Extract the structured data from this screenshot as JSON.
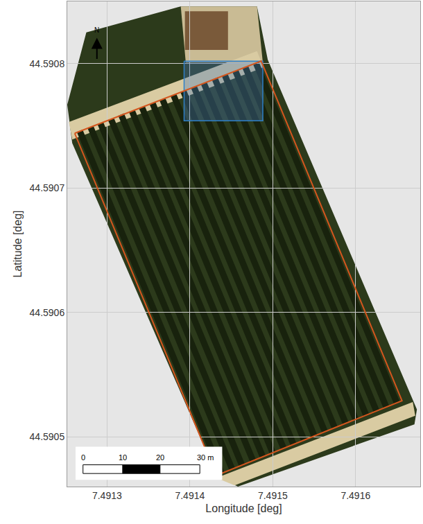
{
  "chart_data": {
    "type": "map",
    "x_label": "Longitude [deg]",
    "y_label": "Latitude [deg]",
    "xlim": [
      7.491252,
      7.491678
    ],
    "ylim": [
      44.59046,
      44.59085
    ],
    "xticks": [
      7.4913,
      7.4914,
      7.4915,
      7.4916
    ],
    "yticks": [
      44.5905,
      44.5906,
      44.5907,
      44.5908
    ],
    "grid": true,
    "north_label": "N",
    "features": [
      {
        "color": "#2c3a1b",
        "lon": [
          7.491252,
          7.491275,
          7.491389,
          7.491481,
          7.491494,
          7.491674,
          7.491671,
          7.491458,
          7.491433,
          7.491258
        ],
        "lat": [
          44.590767,
          44.590825,
          44.590846,
          44.590846,
          44.590803,
          44.590522,
          44.59051,
          44.59046,
          44.590468,
          44.590736
        ]
      },
      {
        "color": "#c9bb94",
        "lon": [
          7.491389,
          7.491481,
          7.491488,
          7.491395
        ],
        "lat": [
          44.590846,
          44.590846,
          44.590801,
          44.590801
        ]
      },
      {
        "color": "#7a5a3a",
        "lon": [
          7.491394,
          7.491446,
          7.491446,
          7.491394
        ],
        "lat": [
          44.590842,
          44.590842,
          44.590811,
          44.590811
        ]
      },
      {
        "color": "#d9cba2",
        "lon": [
          7.491254,
          7.491481,
          7.491489,
          7.491258
        ],
        "lat": [
          44.590753,
          44.59081,
          44.590797,
          44.590739
        ]
      },
      {
        "color": "#d9cba2",
        "lon": [
          7.491432,
          7.491669,
          7.491672,
          7.491454
        ],
        "lat": [
          44.590467,
          44.590528,
          44.590517,
          44.590461
        ]
      }
    ],
    "rows": {
      "color": "#18220d",
      "lon": [
        [
          7.491267,
          7.491438
        ],
        [
          7.49128,
          7.491451
        ],
        [
          7.491292,
          7.491463
        ],
        [
          7.491305,
          7.491476
        ],
        [
          7.491317,
          7.491488
        ],
        [
          7.49133,
          7.4915
        ],
        [
          7.491342,
          7.491513
        ],
        [
          7.491355,
          7.491525
        ],
        [
          7.491367,
          7.491538
        ],
        [
          7.49138,
          7.49155
        ],
        [
          7.491392,
          7.491563
        ],
        [
          7.491405,
          7.491575
        ],
        [
          7.491417,
          7.491588
        ],
        [
          7.49143,
          7.4916
        ],
        [
          7.491442,
          7.491613
        ],
        [
          7.491455,
          7.491625
        ],
        [
          7.491467,
          7.491637
        ],
        [
          7.49148,
          7.49165
        ]
      ],
      "lat": [
        [
          44.590746,
          44.590471
        ],
        [
          44.590749,
          44.590474
        ],
        [
          44.590752,
          44.590477
        ],
        [
          44.590755,
          44.590481
        ],
        [
          44.590759,
          44.590484
        ],
        [
          44.590762,
          44.590487
        ],
        [
          44.590765,
          44.590491
        ],
        [
          44.590768,
          44.590494
        ],
        [
          44.590771,
          44.590497
        ],
        [
          44.590775,
          44.590501
        ],
        [
          44.590778,
          44.590504
        ],
        [
          44.590781,
          44.590507
        ],
        [
          44.590784,
          44.590511
        ],
        [
          44.590788,
          44.590514
        ],
        [
          44.590791,
          44.590517
        ],
        [
          44.590794,
          44.590521
        ],
        [
          44.590797,
          44.590524
        ],
        [
          44.5908,
          44.590527
        ]
      ]
    },
    "boundary": {
      "color": "#d4561e",
      "lon": [
        7.491261,
        7.491486,
        7.491656,
        7.491432,
        7.491261
      ],
      "lat": [
        44.590744,
        44.590802,
        44.590529,
        44.590469,
        44.590744
      ]
    },
    "subplot": {
      "color": "#2f80c8",
      "lon": [
        7.491393,
        7.491488,
        7.491488,
        7.491393,
        7.491393
      ],
      "lat": [
        44.590802,
        44.590802,
        44.590754,
        44.590754,
        44.590802
      ]
    },
    "scale_bar": {
      "lat": 44.590474,
      "ticks": [
        {
          "value": 0,
          "label": "0",
          "lon": 7.491271
        },
        {
          "value": 10,
          "label": "10",
          "lon": 7.491319
        },
        {
          "value": 20,
          "label": "20",
          "lon": 7.491364
        },
        {
          "value": 30,
          "label": "30 m",
          "lon": 7.491412
        }
      ]
    }
  }
}
